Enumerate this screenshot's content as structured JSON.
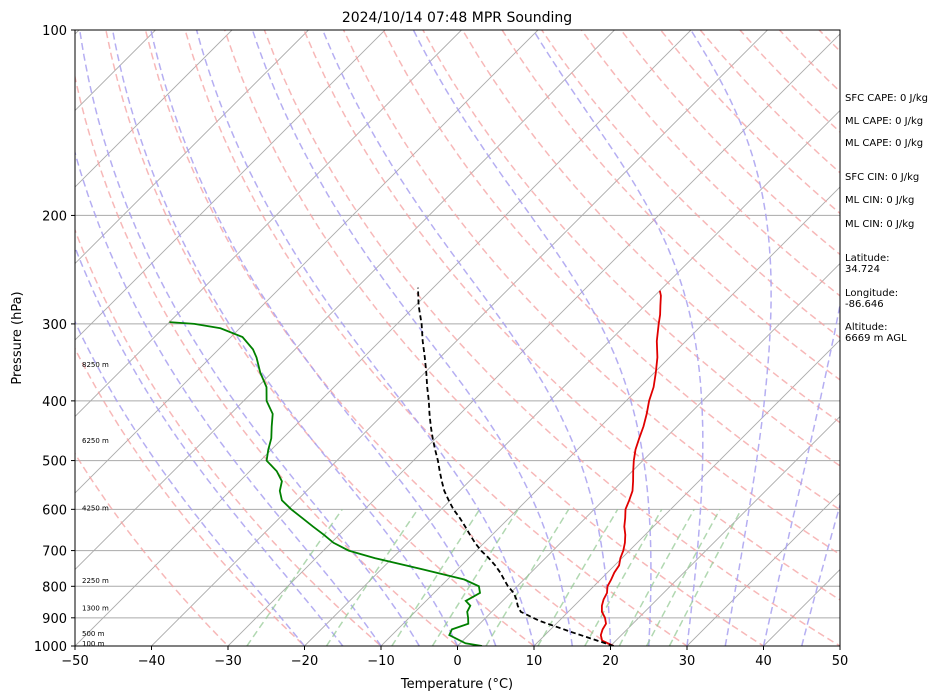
{
  "chart_data": {
    "type": "line",
    "subtype": "skew-t log-p sounding",
    "title": "2024/10/14 07:48 MPR Sounding",
    "xlabel": "Temperature (°C)",
    "ylabel": "Pressure (hPa)",
    "xlim": [
      -50,
      50
    ],
    "ylim": [
      1000,
      100
    ],
    "y_scale": "log",
    "x_ticks": [
      "−50",
      "−40",
      "−30",
      "−20",
      "−10",
      "0",
      "10",
      "20",
      "30",
      "40",
      "50"
    ],
    "y_ticks": [
      "100",
      "200",
      "300",
      "400",
      "500",
      "600",
      "700",
      "800",
      "900",
      "1000"
    ],
    "grid": true,
    "series": [
      {
        "color": "#e00000",
        "points": [
          [
            1000,
            20.4
          ],
          [
            980,
            18.2
          ],
          [
            960,
            17.3
          ],
          [
            940,
            16.8
          ],
          [
            920,
            16.5
          ],
          [
            900,
            15.6
          ],
          [
            880,
            14.4
          ],
          [
            860,
            13.6
          ],
          [
            840,
            13.0
          ],
          [
            820,
            12.6
          ],
          [
            800,
            11.8
          ],
          [
            780,
            11.4
          ],
          [
            760,
            10.9
          ],
          [
            740,
            10.6
          ],
          [
            720,
            9.8
          ],
          [
            700,
            9.2
          ],
          [
            680,
            8.4
          ],
          [
            660,
            7.4
          ],
          [
            640,
            6.2
          ],
          [
            620,
            5.2
          ],
          [
            600,
            4.1
          ],
          [
            580,
            3.4
          ],
          [
            560,
            2.6
          ],
          [
            540,
            1.4
          ],
          [
            520,
            0.1
          ],
          [
            500,
            -1.2
          ],
          [
            480,
            -2.4
          ],
          [
            460,
            -3.4
          ],
          [
            440,
            -4.4
          ],
          [
            420,
            -5.6
          ],
          [
            400,
            -7.0
          ],
          [
            380,
            -8.2
          ],
          [
            360,
            -9.8
          ],
          [
            340,
            -11.6
          ],
          [
            320,
            -13.8
          ],
          [
            300,
            -15.8
          ],
          [
            290,
            -16.8
          ],
          [
            280,
            -18.0
          ],
          [
            270,
            -19.2
          ],
          [
            265,
            -20.0
          ]
        ]
      },
      {
        "color": "#008000",
        "points": [
          [
            1000,
            3.2
          ],
          [
            990,
            0.7
          ],
          [
            960,
            -2.5
          ],
          [
            940,
            -2.9
          ],
          [
            920,
            -1.5
          ],
          [
            900,
            -2.3
          ],
          [
            880,
            -3.2
          ],
          [
            860,
            -3.6
          ],
          [
            845,
            -4.8
          ],
          [
            835,
            -4.5
          ],
          [
            820,
            -4.0
          ],
          [
            800,
            -5.0
          ],
          [
            780,
            -7.8
          ],
          [
            750,
            -14.8
          ],
          [
            720,
            -22.3
          ],
          [
            700,
            -26.7
          ],
          [
            680,
            -29.7
          ],
          [
            660,
            -32.0
          ],
          [
            640,
            -34.5
          ],
          [
            620,
            -37.0
          ],
          [
            600,
            -39.6
          ],
          [
            580,
            -42.0
          ],
          [
            560,
            -43.5
          ],
          [
            540,
            -44.5
          ],
          [
            520,
            -46.5
          ],
          [
            500,
            -49.2
          ],
          [
            480,
            -50.4
          ],
          [
            460,
            -51.5
          ],
          [
            440,
            -53.0
          ],
          [
            420,
            -54.5
          ],
          [
            400,
            -57.0
          ],
          [
            380,
            -58.8
          ],
          [
            360,
            -61.5
          ],
          [
            340,
            -64.0
          ],
          [
            330,
            -65.5
          ],
          [
            315,
            -68.5
          ],
          [
            305,
            -72.5
          ],
          [
            300,
            -76.5
          ],
          [
            298,
            -80.0
          ]
        ]
      },
      {
        "color": "#000000",
        "style": "dashed",
        "points": [
          [
            1000,
            20.4
          ],
          [
            950,
            13.2
          ],
          [
            910,
            7.4
          ],
          [
            880,
            3.8
          ],
          [
            860,
            2.6
          ],
          [
            840,
            1.6
          ],
          [
            820,
            0.4
          ],
          [
            800,
            -1.2
          ],
          [
            780,
            -2.6
          ],
          [
            760,
            -4.0
          ],
          [
            740,
            -5.6
          ],
          [
            720,
            -7.4
          ],
          [
            700,
            -9.4
          ],
          [
            680,
            -11.2
          ],
          [
            660,
            -12.9
          ],
          [
            640,
            -14.6
          ],
          [
            620,
            -16.4
          ],
          [
            600,
            -18.4
          ],
          [
            580,
            -20.2
          ],
          [
            560,
            -22.0
          ],
          [
            540,
            -23.6
          ],
          [
            520,
            -25.2
          ],
          [
            500,
            -26.8
          ],
          [
            480,
            -28.6
          ],
          [
            460,
            -30.4
          ],
          [
            440,
            -32.2
          ],
          [
            420,
            -34.0
          ],
          [
            400,
            -35.8
          ],
          [
            380,
            -37.8
          ],
          [
            360,
            -39.8
          ],
          [
            340,
            -42.0
          ],
          [
            320,
            -44.4
          ],
          [
            300,
            -46.8
          ],
          [
            280,
            -49.6
          ],
          [
            262,
            -52.0
          ]
        ]
      }
    ],
    "height_labels": [
      {
        "text": "100 m",
        "p": 992
      },
      {
        "text": "500 m",
        "p": 956
      },
      {
        "text": "1300 m",
        "p": 870
      },
      {
        "text": "2250 m",
        "p": 785
      },
      {
        "text": "4250 m",
        "p": 598
      },
      {
        "text": "6250 m",
        "p": 465
      },
      {
        "text": "8250 m",
        "p": 350
      }
    ],
    "background_lines": {
      "isotherm_color": "#aaaaaa",
      "dry_adiabat_color": "#f4a0a0",
      "moist_adiabat_color": "#a8a0f0",
      "mixing_ratio_color": "#90c890"
    }
  },
  "side_info": [
    "SFC CAPE: 0 J/kg",
    "ML CAPE: 0 J/kg",
    "ML CAPE: 0 J/kg",
    "SFC CIN: 0 J/kg",
    "ML CIN: 0 J/kg",
    "ML CIN: 0 J/kg",
    "Latitude:\n34.724",
    "Longitude:\n-86.646",
    "Altitude:\n6669 m AGL"
  ]
}
